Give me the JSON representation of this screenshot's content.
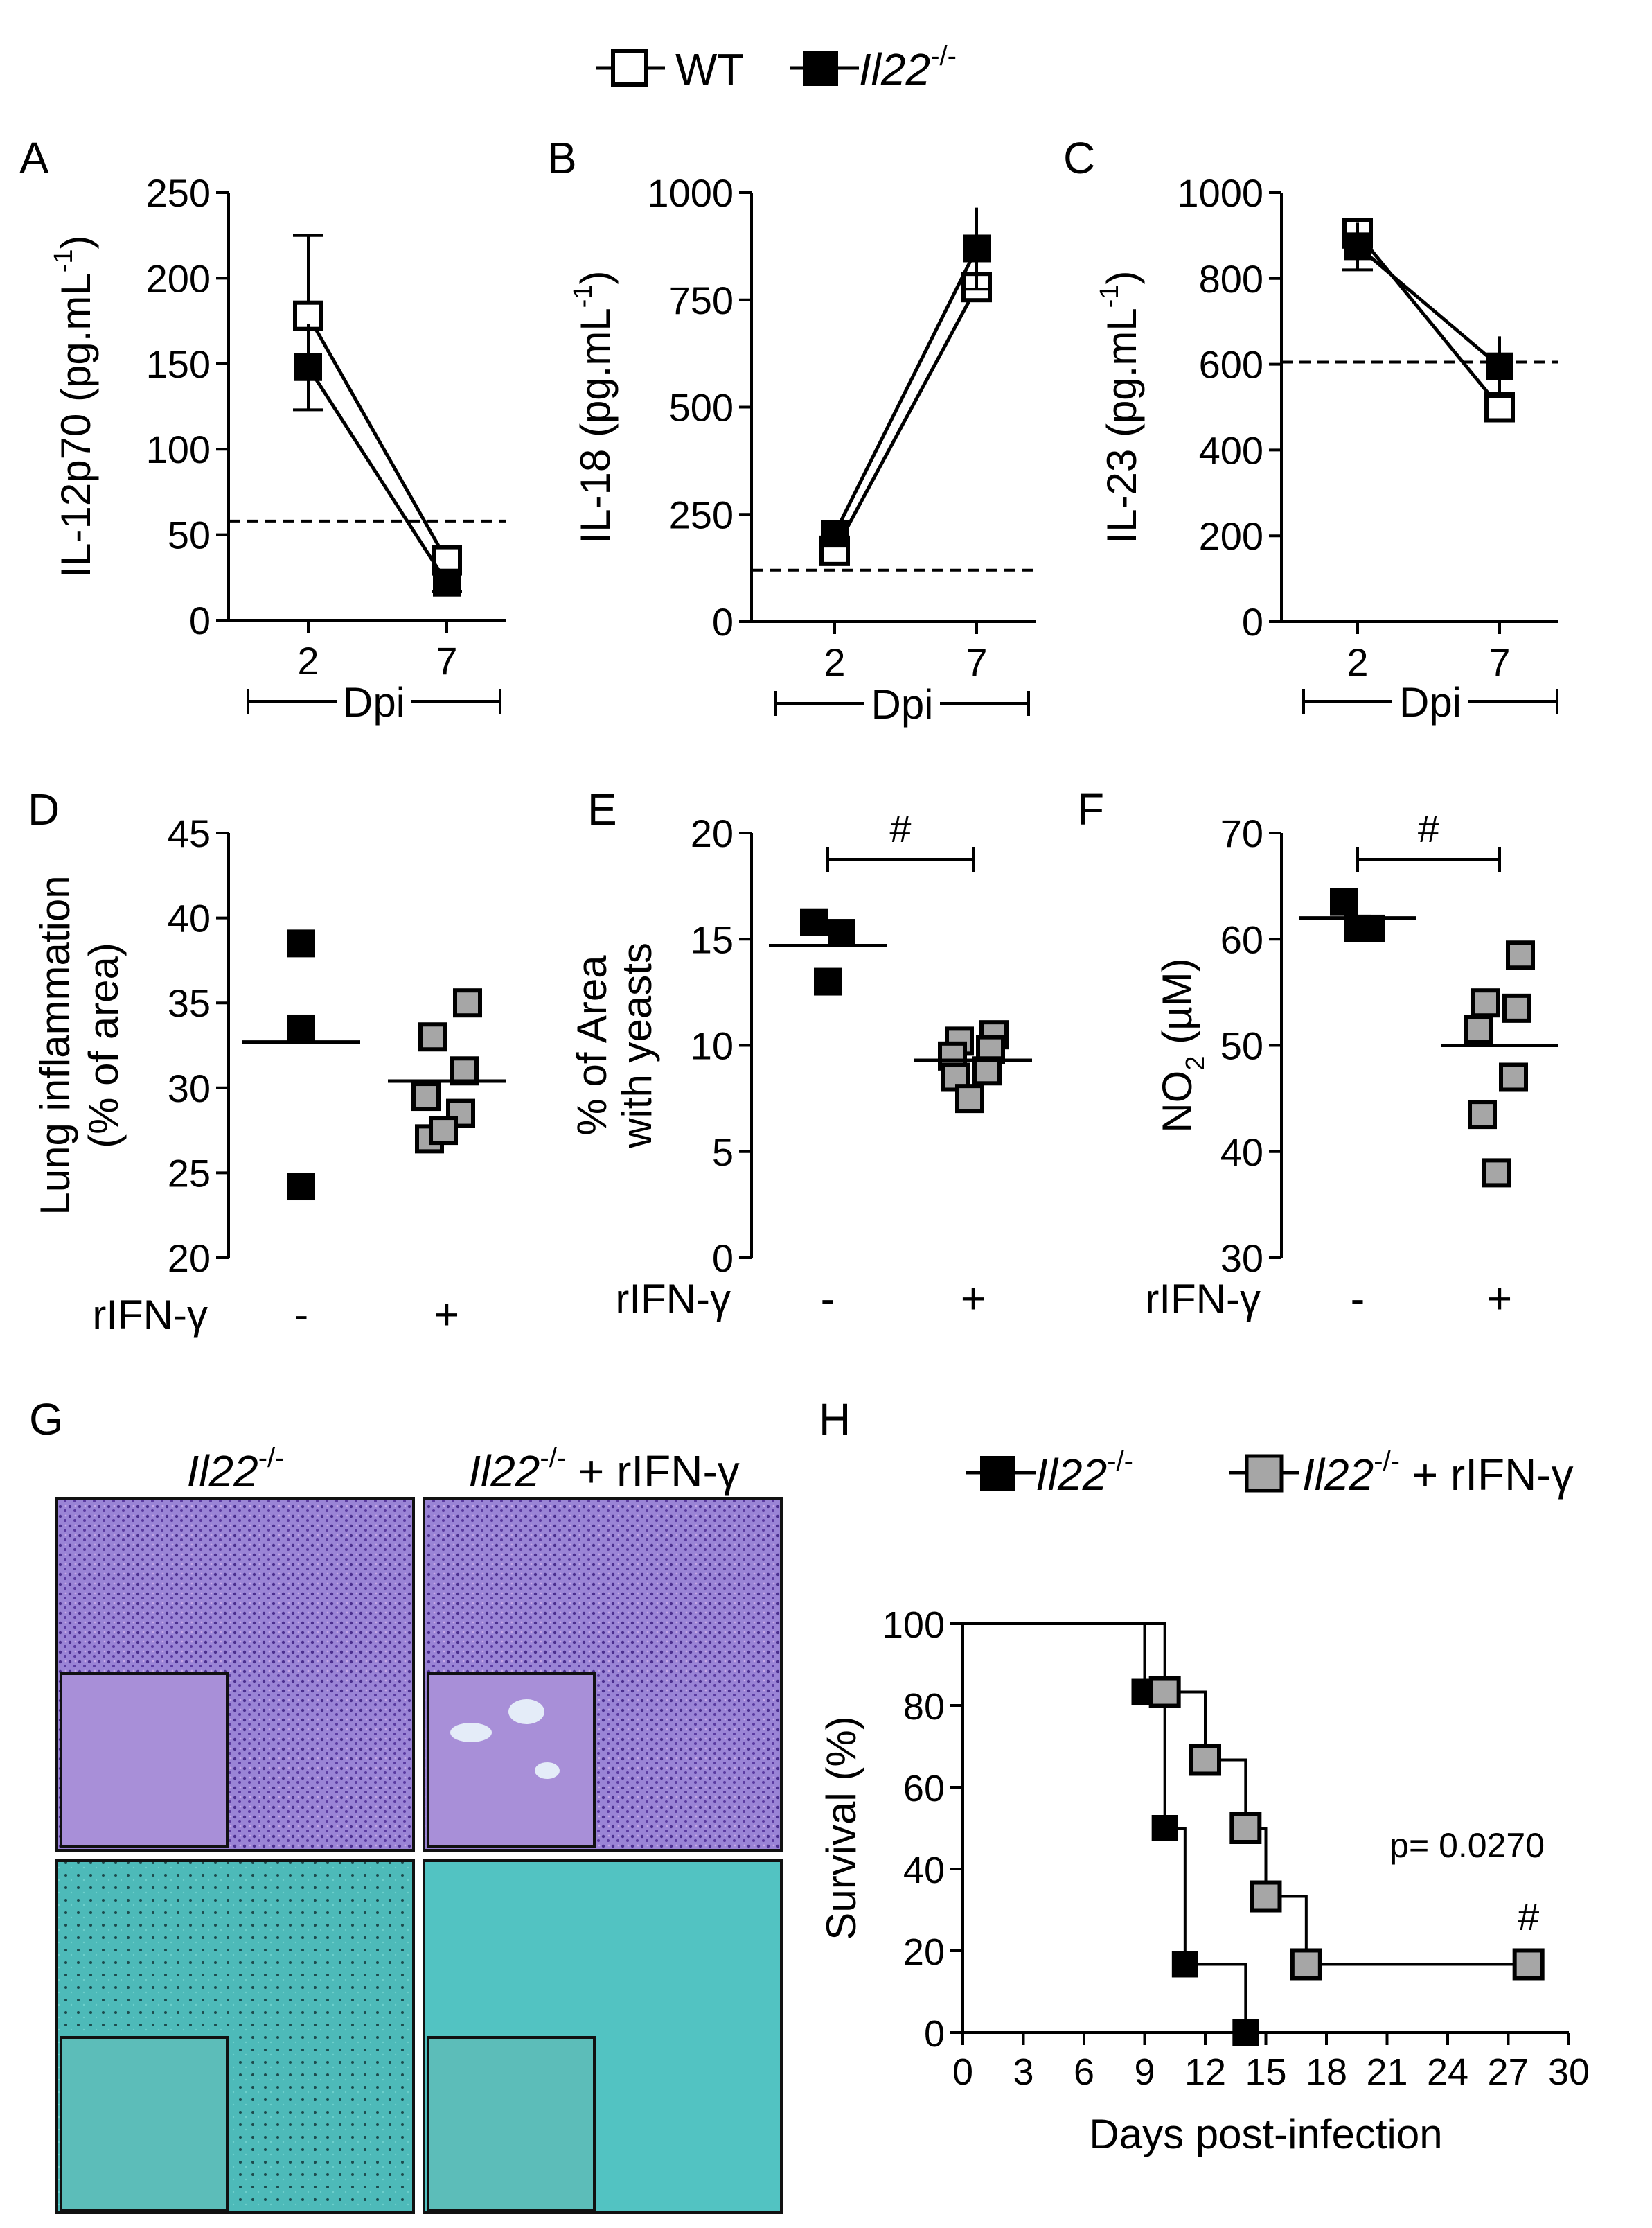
{
  "legend_top": {
    "wt": "WT",
    "ko": "Il22",
    "ko_sup": "-/-"
  },
  "chart_data": [
    {
      "id": "A",
      "type": "line",
      "letter": "A",
      "ylabel": "IL-12p70 (pg.mL",
      "ylabel_sup": "-1",
      "ylabel_end": ")",
      "xlabel": "Dpi",
      "categories": [
        "2",
        "7"
      ],
      "ylim": [
        0,
        250
      ],
      "yticks": [
        0,
        50,
        100,
        150,
        200,
        250
      ],
      "baseline": 58,
      "series": [
        {
          "name": "WT",
          "values": [
            178,
            35
          ],
          "err": [
            47,
            8
          ],
          "marker": "open"
        },
        {
          "name": "Il22-/-",
          "values": [
            148,
            22
          ],
          "err": [
            25,
            5
          ],
          "marker": "filled"
        }
      ]
    },
    {
      "id": "B",
      "type": "line",
      "letter": "B",
      "ylabel": "IL-18 (pg.mL",
      "ylabel_sup": "-1",
      "ylabel_end": ")",
      "xlabel": "Dpi",
      "categories": [
        "2",
        "7"
      ],
      "ylim": [
        0,
        1000
      ],
      "yticks": [
        0,
        250,
        500,
        750,
        1000
      ],
      "baseline": 120,
      "series": [
        {
          "name": "WT",
          "values": [
            165,
            780
          ],
          "err": [
            10,
            15
          ],
          "marker": "open"
        },
        {
          "name": "Il22-/-",
          "values": [
            205,
            870
          ],
          "err": [
            10,
            95
          ],
          "marker": "filled"
        }
      ]
    },
    {
      "id": "C",
      "type": "line",
      "letter": "C",
      "ylabel": "IL-23 (pg.mL",
      "ylabel_sup": "-1",
      "ylabel_end": ")",
      "xlabel": "Dpi",
      "categories": [
        "2",
        "7"
      ],
      "ylim": [
        0,
        1000
      ],
      "yticks": [
        0,
        200,
        400,
        600,
        800,
        1000
      ],
      "baseline": 605,
      "series": [
        {
          "name": "WT",
          "values": [
            905,
            500
          ],
          "err": [
            25,
            20
          ],
          "marker": "open"
        },
        {
          "name": "Il22-/-",
          "values": [
            875,
            595
          ],
          "err": [
            55,
            70
          ],
          "marker": "filled"
        }
      ]
    },
    {
      "id": "D",
      "type": "scatter",
      "letter": "D",
      "ylabel_lines": [
        "Lung inflammation",
        "(% of area)"
      ],
      "xlabel": "rIFN-γ",
      "categories": [
        "-",
        "+"
      ],
      "ylim": [
        20,
        45
      ],
      "yticks": [
        20,
        25,
        30,
        35,
        40,
        45
      ],
      "groups": [
        {
          "name": "-",
          "points": [
            38.5,
            33.5,
            24.2
          ],
          "mean": 32.7,
          "color": "black"
        },
        {
          "name": "+",
          "points": [
            35,
            33,
            31,
            29.5,
            28.5,
            27,
            27.5
          ],
          "mean": 30.4,
          "color": "gray"
        }
      ],
      "significance": ""
    },
    {
      "id": "E",
      "type": "scatter",
      "letter": "E",
      "ylabel_lines": [
        "% of Area",
        "with yeasts"
      ],
      "xlabel": "rIFN-γ",
      "categories": [
        "-",
        "+"
      ],
      "ylim": [
        0,
        20
      ],
      "yticks": [
        0,
        5,
        10,
        15,
        20
      ],
      "groups": [
        {
          "name": "-",
          "points": [
            15.8,
            15.3,
            13
          ],
          "mean": 14.7,
          "color": "black"
        },
        {
          "name": "+",
          "points": [
            10.5,
            10.2,
            9.8,
            9.5,
            8.8,
            8.5,
            7.5
          ],
          "mean": 9.3,
          "color": "gray"
        }
      ],
      "significance": "#"
    },
    {
      "id": "F",
      "type": "scatter",
      "letter": "F",
      "ylabel_lines": [
        "NO",
        "2",
        "(µM)"
      ],
      "xlabel": "rIFN-γ",
      "categories": [
        "-",
        "+"
      ],
      "ylim": [
        30,
        70
      ],
      "yticks": [
        30,
        40,
        50,
        60,
        70
      ],
      "groups": [
        {
          "name": "-",
          "points": [
            63.5,
            61,
            61
          ],
          "mean": 62,
          "color": "black"
        },
        {
          "name": "+",
          "points": [
            58.5,
            54,
            53.5,
            51.5,
            47,
            43.5,
            38
          ],
          "mean": 50,
          "color": "gray"
        }
      ],
      "significance": "#"
    },
    {
      "id": "H",
      "type": "line",
      "letter": "H",
      "subtype": "survival",
      "ylabel": "Survival (%)",
      "xlabel": "Days post-infection",
      "xlim": [
        0,
        30
      ],
      "xticks": [
        0,
        3,
        6,
        9,
        12,
        15,
        18,
        21,
        24,
        27,
        30
      ],
      "ylim": [
        0,
        100
      ],
      "yticks": [
        0,
        20,
        40,
        60,
        80,
        100
      ],
      "series": [
        {
          "name": "Il22-/-",
          "color": "black",
          "steps": [
            [
              0,
              100
            ],
            [
              9,
              100
            ],
            [
              9,
              83.3
            ],
            [
              10,
              83.3
            ],
            [
              10,
              50
            ],
            [
              11,
              50
            ],
            [
              11,
              16.7
            ],
            [
              14,
              16.7
            ],
            [
              14,
              0
            ]
          ],
          "markers": [
            [
              9,
              83.3
            ],
            [
              10,
              50
            ],
            [
              11,
              16.7
            ],
            [
              14,
              0
            ]
          ]
        },
        {
          "name": "Il22-/- + rIFN-γ",
          "color": "gray",
          "steps": [
            [
              0,
              100
            ],
            [
              10,
              100
            ],
            [
              10,
              83.3
            ],
            [
              12,
              83.3
            ],
            [
              12,
              66.7
            ],
            [
              14,
              66.7
            ],
            [
              14,
              50
            ],
            [
              15,
              50
            ],
            [
              15,
              33.3
            ],
            [
              17,
              33.3
            ],
            [
              17,
              16.7
            ],
            [
              28,
              16.7
            ]
          ],
          "markers": [
            [
              10,
              83.3
            ],
            [
              12,
              66.7
            ],
            [
              14,
              50
            ],
            [
              15,
              33.3
            ],
            [
              17,
              16.7
            ],
            [
              28,
              16.7
            ]
          ]
        }
      ],
      "pvalue": "p= 0.0270",
      "significance": "#"
    }
  ],
  "panel_g": {
    "letter": "G",
    "col1": {
      "main": "Il22",
      "sup": "-/-",
      "rest": ""
    },
    "col2": {
      "main": "Il22",
      "sup": "-/-",
      "rest": " + rIFN-γ"
    }
  },
  "legend_h": {
    "ko": "Il22",
    "ko_sup": "-/-",
    "treated_rest": " + rIFN-γ"
  },
  "colors": {
    "gray": "#a6a6a6",
    "black": "#000000",
    "he_purple": "#8a6fc8",
    "gms_teal": "#4bb5b4"
  }
}
